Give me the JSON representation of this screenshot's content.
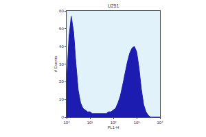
{
  "chart_data": {
    "type": "area",
    "title": "U251",
    "x_label": "FL1-H",
    "y_label": "# Events",
    "x": [
      1,
      1.26,
      1.58,
      2,
      2.51,
      3.16,
      3.98,
      5.01,
      6.31,
      7.94,
      10,
      12.6,
      15.8,
      20,
      25.1,
      31.6,
      39.8,
      50.1,
      63.1,
      79.4,
      100,
      126,
      158,
      200,
      251,
      316,
      398,
      501,
      631,
      794,
      1000,
      1260,
      1580,
      2000,
      2510,
      3160,
      3980,
      5010,
      6310,
      7940,
      10000
    ],
    "values": [
      20,
      45,
      57,
      48,
      30,
      15,
      8,
      5,
      4,
      3,
      3,
      2,
      2,
      2,
      2,
      2,
      2,
      2,
      3,
      3,
      4,
      5,
      8,
      12,
      18,
      25,
      31,
      36,
      39,
      40,
      37,
      28,
      16,
      7,
      3,
      1,
      0,
      0,
      0,
      0,
      0
    ],
    "color": "#1c1cb0",
    "log": "x",
    "xlim": [
      1,
      10000
    ],
    "xticks": [
      {
        "value": 1,
        "label": "10⁰"
      },
      {
        "value": 10,
        "label": "10¹"
      },
      {
        "value": 100,
        "label": "10²"
      },
      {
        "value": 1000,
        "label": "10³"
      },
      {
        "value": 10000,
        "label": "10⁴"
      }
    ],
    "ylim": [
      0,
      60
    ],
    "yticks": [
      0,
      10,
      20,
      30,
      40,
      50,
      60
    ],
    "grid": false
  }
}
